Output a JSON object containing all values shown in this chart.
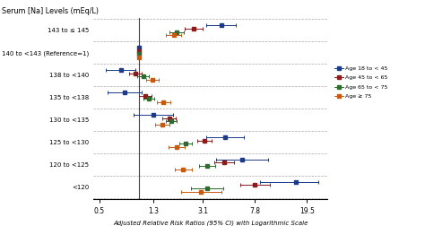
{
  "title": "Serum [Na] Levels (mEq/L)",
  "xlabel": "Adjusted Relative Risk Ratios (95% CI) with Logarithmic Scale",
  "categories": [
    "143 to ≤ 145",
    "140 to <143 (Reference=1)",
    "138 to <140",
    "135 to <138",
    "130 to <135",
    "125 to <130",
    "120 to <125",
    "<120"
  ],
  "xticks": [
    0.5,
    1.3,
    3.1,
    7.8,
    19.5
  ],
  "xtick_labels": [
    "0.5",
    "1.3",
    "3.1",
    "7.8",
    "19.5"
  ],
  "xmin": 0.45,
  "xmax": 28,
  "colors": {
    "blue": "#1a3a8a",
    "red": "#8b1a1a",
    "green": "#2e6b2e",
    "orange": "#c85a10"
  },
  "legend_labels": [
    "Age 18 to < 45",
    "Age 45 to < 65",
    "Age 65 to < 75",
    "Age ≥ 75"
  ],
  "data": {
    "143 to ≤ 145": {
      "blue": {
        "est": 4.3,
        "lo": 3.3,
        "hi": 5.6
      },
      "red": {
        "est": 2.65,
        "lo": 2.25,
        "hi": 3.1
      },
      "green": {
        "est": 1.95,
        "lo": 1.72,
        "hi": 2.22
      },
      "orange": {
        "est": 1.85,
        "lo": 1.62,
        "hi": 2.1
      }
    },
    "140 to <143 (Reference=1)": {
      "blue": {
        "est": 1.0,
        "lo": 0.98,
        "hi": 1.02
      },
      "red": {
        "est": 1.0,
        "lo": 0.98,
        "hi": 1.02
      },
      "green": {
        "est": 1.0,
        "lo": 0.98,
        "hi": 1.02
      },
      "orange": {
        "est": 1.0,
        "lo": 0.98,
        "hi": 1.02
      }
    },
    "138 to <140": {
      "blue": {
        "est": 0.73,
        "lo": 0.56,
        "hi": 0.95
      },
      "red": {
        "est": 0.95,
        "lo": 0.85,
        "hi": 1.06
      },
      "green": {
        "est": 1.08,
        "lo": 0.98,
        "hi": 1.19
      },
      "orange": {
        "est": 1.28,
        "lo": 1.14,
        "hi": 1.43
      }
    },
    "135 to <138": {
      "blue": {
        "est": 0.78,
        "lo": 0.58,
        "hi": 1.05
      },
      "red": {
        "est": 1.12,
        "lo": 1.0,
        "hi": 1.26
      },
      "green": {
        "est": 1.2,
        "lo": 1.09,
        "hi": 1.32
      },
      "orange": {
        "est": 1.55,
        "lo": 1.38,
        "hi": 1.74
      }
    },
    "130 to <135": {
      "blue": {
        "est": 1.3,
        "lo": 0.92,
        "hi": 1.84
      },
      "red": {
        "est": 1.72,
        "lo": 1.52,
        "hi": 1.94
      },
      "green": {
        "est": 1.78,
        "lo": 1.61,
        "hi": 1.97
      },
      "orange": {
        "est": 1.52,
        "lo": 1.34,
        "hi": 1.72
      }
    },
    "125 to <130": {
      "blue": {
        "est": 4.6,
        "lo": 3.3,
        "hi": 6.4
      },
      "red": {
        "est": 3.2,
        "lo": 2.8,
        "hi": 3.65
      },
      "green": {
        "est": 2.3,
        "lo": 2.05,
        "hi": 2.58
      },
      "orange": {
        "est": 1.95,
        "lo": 1.7,
        "hi": 2.24
      }
    },
    "120 to <125": {
      "blue": {
        "est": 6.2,
        "lo": 3.9,
        "hi": 9.8
      },
      "red": {
        "est": 4.5,
        "lo": 3.8,
        "hi": 5.35
      },
      "green": {
        "est": 3.35,
        "lo": 2.9,
        "hi": 3.88
      },
      "orange": {
        "est": 2.2,
        "lo": 1.88,
        "hi": 2.58
      }
    },
    "<120": {
      "blue": {
        "est": 16.0,
        "lo": 8.5,
        "hi": 24.0
      },
      "red": {
        "est": 7.8,
        "lo": 6.0,
        "hi": 10.1
      },
      "green": {
        "est": 3.35,
        "lo": 2.52,
        "hi": 4.45
      },
      "orange": {
        "est": 3.0,
        "lo": 2.1,
        "hi": 4.3
      }
    }
  },
  "offsets": {
    "blue": 0.22,
    "red": 0.07,
    "green": -0.07,
    "orange": -0.22
  },
  "background_color": "#ffffff",
  "grid_color": "#aaaaaa"
}
